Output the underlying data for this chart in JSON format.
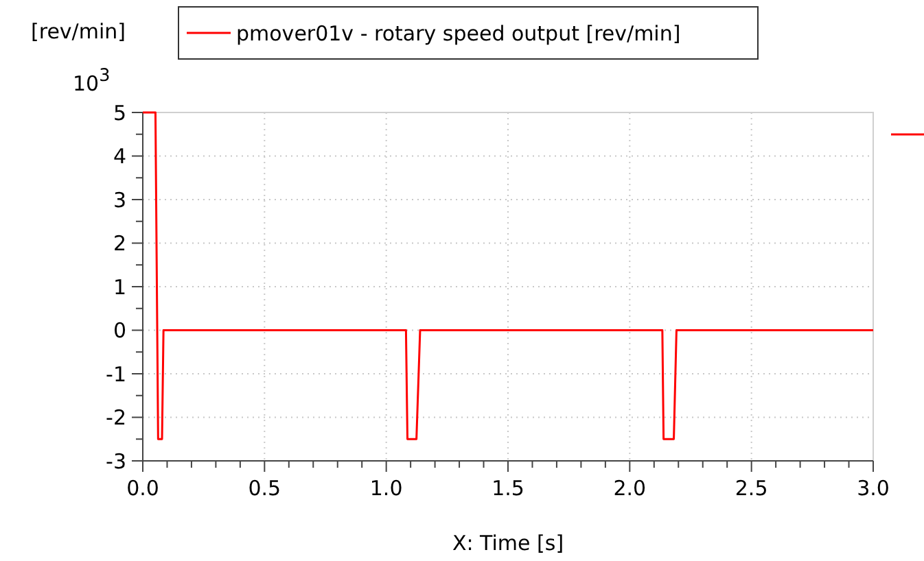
{
  "chart_data": {
    "type": "line",
    "ylabel": "[rev/min]",
    "xlabel": "X: Time [s]",
    "annotations": [
      "10$^{3}$"
    ],
    "x": [
      0,
      0.052,
      0.063,
      0.079,
      0.085,
      1.081,
      1.087,
      1.124,
      1.139,
      2.134,
      2.139,
      2.181,
      2.192,
      3.0
    ],
    "series": [
      {
        "name": "pmover01v - rotary speed output [rev/min]",
        "color": "#ff0000",
        "values": [
          5,
          5,
          -2.5,
          -2.5,
          0,
          0,
          -2.5,
          -2.5,
          0,
          0,
          -2.5,
          -2.5,
          0,
          0
        ]
      }
    ],
    "xlim": [
      0,
      3.0
    ],
    "ylim": [
      -3,
      5
    ],
    "xticks": [
      {
        "value": 0,
        "label": "0.0"
      },
      {
        "value": 0.1,
        "label": null
      },
      {
        "value": 0.2,
        "label": null
      },
      {
        "value": 0.3,
        "label": null
      },
      {
        "value": 0.4,
        "label": null
      },
      0.5,
      {
        "value": 0.6,
        "label": null
      },
      {
        "value": 0.7,
        "label": null
      },
      {
        "value": 0.8,
        "label": null
      },
      {
        "value": 0.9,
        "label": null
      },
      {
        "value": 1,
        "label": "1.0"
      },
      {
        "value": 1.1,
        "label": null
      },
      {
        "value": 1.2,
        "label": null
      },
      {
        "value": 1.3,
        "label": null
      },
      {
        "value": 1.4,
        "label": null
      },
      1.5,
      {
        "value": 1.6,
        "label": null
      },
      {
        "value": 1.7,
        "label": null
      },
      {
        "value": 1.8,
        "label": null
      },
      {
        "value": 1.9,
        "label": null
      },
      {
        "value": 2,
        "label": "2.0"
      },
      {
        "value": 2.1,
        "label": null
      },
      {
        "value": 2.2,
        "label": null
      },
      {
        "value": 2.3,
        "label": null
      },
      {
        "value": 2.4,
        "label": null
      },
      2.5,
      {
        "value": 2.6,
        "label": null
      },
      {
        "value": 2.7,
        "label": null
      },
      {
        "value": 2.8,
        "label": null
      },
      {
        "value": 2.9,
        "label": null
      },
      {
        "value": 3,
        "label": "3.0"
      }
    ],
    "yticks": [
      -3,
      {
        "value": -2.5,
        "label": null
      },
      -2,
      {
        "value": -1.5,
        "label": null
      },
      -1,
      {
        "value": -0.5,
        "label": null
      },
      0,
      {
        "value": 0.5,
        "label": null
      },
      1,
      {
        "value": 1.5,
        "label": null
      },
      2,
      {
        "value": 2.5,
        "label": null
      },
      3,
      {
        "value": 3.5,
        "label": null
      },
      4,
      {
        "value": 4.5,
        "label": null
      },
      5
    ],
    "grid": true,
    "legend": "top",
    "marker": "none",
    "line_style": "solid"
  }
}
